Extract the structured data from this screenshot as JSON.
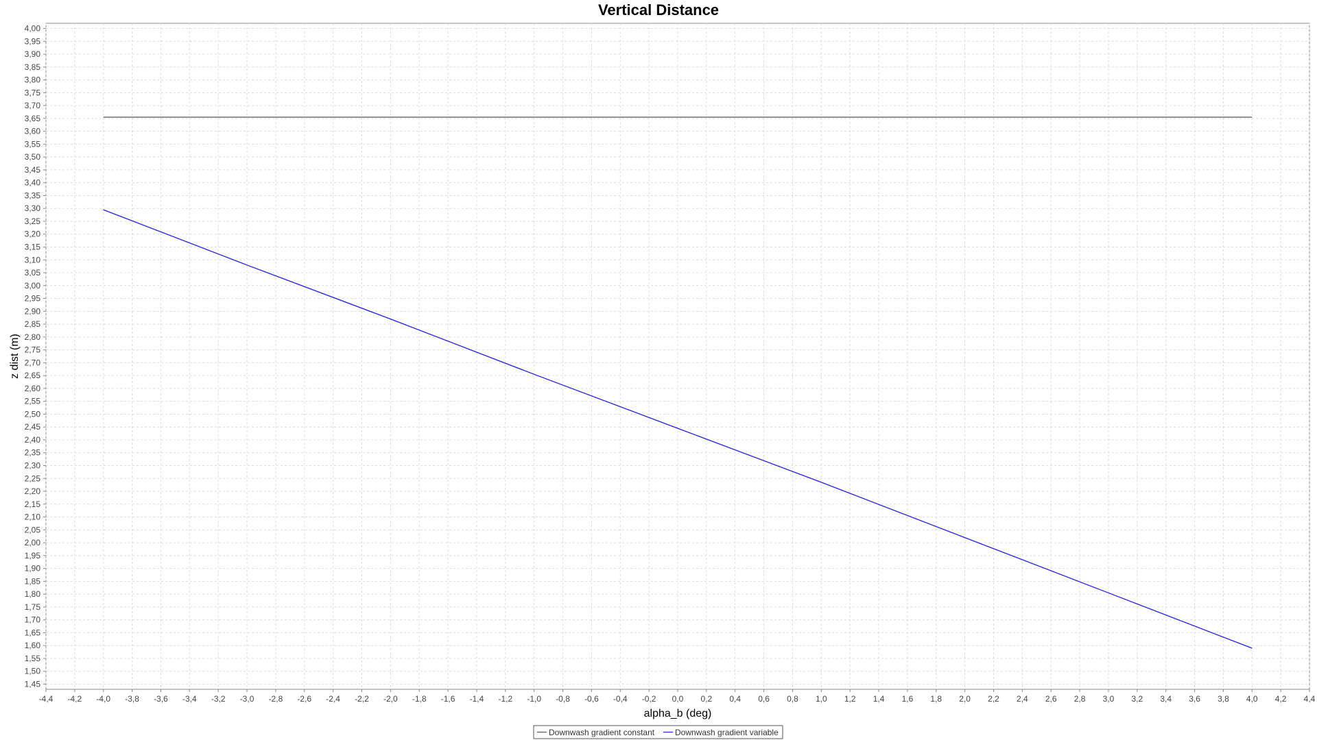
{
  "chart_data": {
    "type": "line",
    "title": "Vertical Distance",
    "xlabel": "alpha_b (deg)",
    "ylabel": "z dist (m)",
    "xlim": [
      -4.4,
      4.4
    ],
    "ylim": [
      1.43,
      4.02
    ],
    "x_tick_step": 0.2,
    "y_tick_step": 0.05,
    "grid": true,
    "legend_position": "bottom",
    "series": [
      {
        "name": "Downwash gradient constant",
        "color": "#555555",
        "x": [
          -4.0,
          4.0
        ],
        "y": [
          3.655,
          3.655
        ]
      },
      {
        "name": "Downwash gradient variable",
        "color": "#1f1fe0",
        "x": [
          -4.0,
          -3.0,
          -2.0,
          -1.0,
          0.0,
          1.0,
          2.0,
          3.0,
          4.0
        ],
        "y": [
          3.295,
          3.08,
          2.87,
          2.655,
          2.445,
          2.235,
          2.02,
          1.805,
          1.59
        ]
      }
    ]
  }
}
